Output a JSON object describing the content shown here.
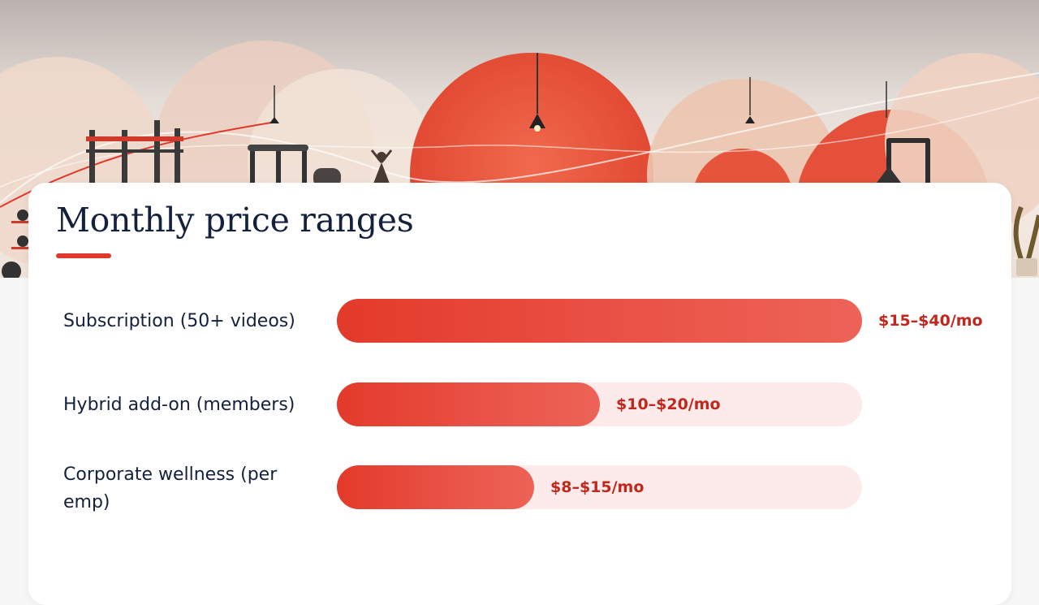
{
  "hero": {
    "icons": [
      "pull-up-rig-icon",
      "cable-machine-icon",
      "kettlebell-icon",
      "yoga-pose-icon",
      "pendant-lamp-icon",
      "punching-bag-icon",
      "plant-icon"
    ]
  },
  "colors": {
    "accent": "#e0392b",
    "bar_fill": "#e33a2a",
    "bar_track": "#fcebea",
    "value_text": "#c1271c",
    "title_text": "#14213d"
  },
  "chart_data": {
    "type": "bar",
    "orientation": "horizontal",
    "title": "Monthly price ranges",
    "categories": [
      "Subscription (50+ videos)",
      "Hybrid add-on (members)",
      "Corporate wellness (per emp)"
    ],
    "value_labels": [
      "$15–$40/mo",
      "$10–$20/mo",
      "$8–$15/mo"
    ],
    "range_low": [
      15,
      10,
      8
    ],
    "range_high": [
      40,
      20,
      15
    ],
    "unit": "$/mo",
    "xlim": [
      0,
      40
    ],
    "grid": false,
    "legend": "none"
  }
}
